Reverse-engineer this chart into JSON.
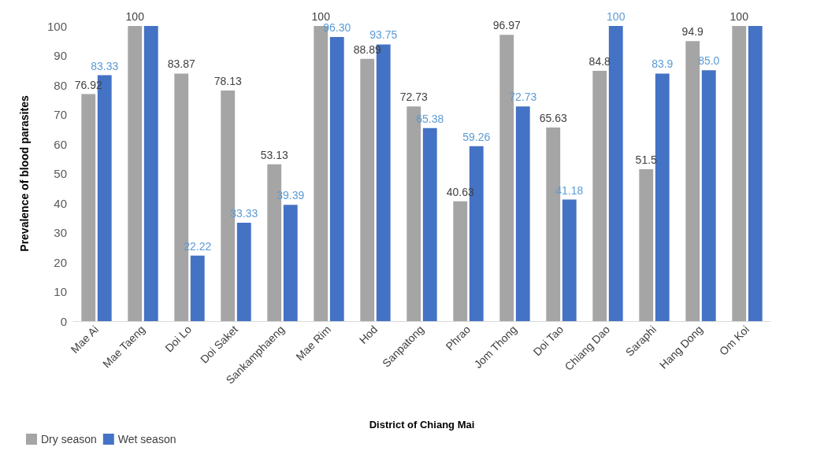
{
  "chart_data": {
    "type": "bar",
    "xlabel": "District of Chiang Mai",
    "ylabel": "Prevalence of blood parasites",
    "categories": [
      "Mae Ai",
      "Mae Taeng",
      "Doi Lo",
      "Doi Saket",
      "Sankamphaeng",
      "Mae Rim",
      "Hod",
      "Sanpatong",
      "Phrao",
      "Jom Thong",
      "Doi Tao",
      "Chiang Dao",
      "Saraphi",
      "Hang Dong",
      "Om Koi"
    ],
    "series": [
      {
        "name": "Dry season",
        "color": "#a5a5a5",
        "values": [
          76.92,
          100,
          83.87,
          78.13,
          53.13,
          100,
          88.89,
          72.73,
          40.63,
          96.97,
          65.63,
          84.8,
          51.5,
          94.9,
          100
        ],
        "value_labels": [
          "76.92",
          "100",
          "83.87",
          "78.13",
          "53.13",
          "100",
          "88.89",
          "72.73",
          "40.63",
          "96.97",
          "65.63",
          "84.8",
          "51.5",
          "94.9",
          "100"
        ]
      },
      {
        "name": "Wet season",
        "color": "#4472c4",
        "values": [
          83.33,
          100,
          22.22,
          33.33,
          39.39,
          96.3,
          93.75,
          65.38,
          59.26,
          72.73,
          41.18,
          100,
          83.9,
          85.0,
          100
        ],
        "value_labels": [
          "83.33",
          null,
          "22.22",
          "33.33",
          "39.39",
          "96.30",
          "93.75",
          "65.38",
          "59.26",
          "72.73",
          "41.18",
          "100",
          "83.9",
          "85.0",
          null
        ]
      }
    ],
    "ylim": [
      0,
      100
    ],
    "yticks": [
      0,
      10,
      20,
      30,
      40,
      50,
      60,
      70,
      80,
      90,
      100
    ],
    "grid": false,
    "legend": "bottom left"
  }
}
